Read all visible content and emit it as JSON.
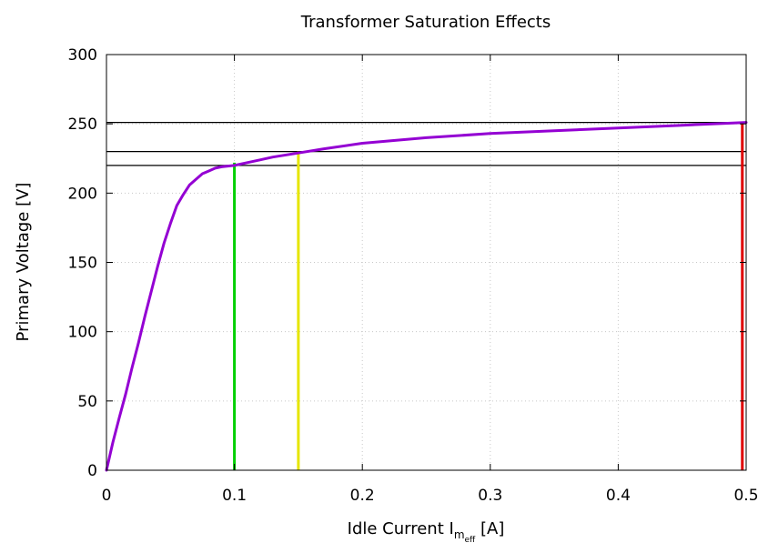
{
  "chart_data": {
    "type": "line",
    "title": "Transformer Saturation Effects",
    "xlabel": {
      "main": "Idle Current I",
      "sub": "m",
      "subsub": "eff",
      "suffix": " [A]"
    },
    "ylabel": "Primary Voltage [V]",
    "xlim": [
      0,
      0.5
    ],
    "ylim": [
      0,
      300
    ],
    "xticks": [
      0,
      0.1,
      0.2,
      0.3,
      0.4,
      0.5
    ],
    "xtick_labels": [
      "0",
      "0.1",
      "0.2",
      "0.3",
      "0.4",
      "0.5"
    ],
    "yticks": [
      0,
      50,
      100,
      150,
      200,
      250,
      300
    ],
    "ytick_labels": [
      "0",
      "50",
      "100",
      "150",
      "200",
      "250",
      "300"
    ],
    "grid": true,
    "legend": "none",
    "series": [
      {
        "color": "#9400d3",
        "x": [
          0,
          0.005,
          0.01,
          0.015,
          0.02,
          0.025,
          0.03,
          0.035,
          0.04,
          0.045,
          0.05,
          0.055,
          0.06,
          0.065,
          0.07,
          0.075,
          0.08,
          0.085,
          0.09,
          0.1,
          0.11,
          0.12,
          0.13,
          0.15,
          0.17,
          0.2,
          0.25,
          0.3,
          0.35,
          0.4,
          0.45,
          0.5
        ],
        "y": [
          0,
          20,
          38,
          55,
          74,
          92,
          111,
          129,
          147,
          164,
          178,
          191,
          199,
          206,
          210,
          214,
          216,
          218,
          219,
          220,
          222,
          224,
          226,
          229,
          232,
          236,
          240,
          243,
          245,
          247,
          249,
          251
        ]
      }
    ],
    "reference_lines": [
      {
        "axis": "y",
        "value": 251,
        "color": "#000000"
      },
      {
        "axis": "y",
        "value": 230,
        "color": "#000000"
      },
      {
        "axis": "y",
        "value": 220,
        "color": "#000000"
      }
    ],
    "markers": [
      {
        "x": 0.1,
        "y": 222,
        "color": "#00d000"
      },
      {
        "x": 0.15,
        "y": 230,
        "color": "#e6e600"
      },
      {
        "x": 0.497,
        "y": 251,
        "color": "#e00000"
      }
    ]
  }
}
